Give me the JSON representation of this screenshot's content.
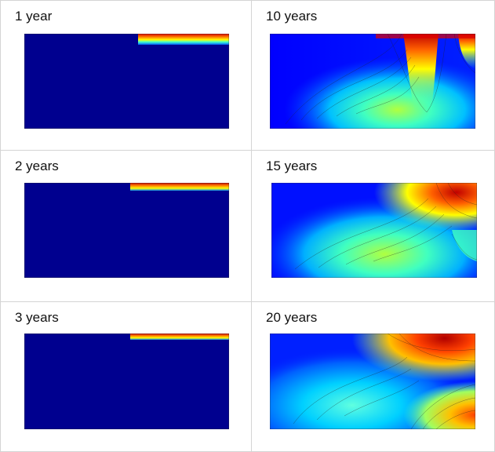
{
  "panels": [
    {
      "label": "1 year",
      "colors": [
        "#000080"
      ]
    },
    {
      "label": "10 years",
      "colors": [
        "#000080"
      ]
    },
    {
      "label": "2 years",
      "colors": [
        "#000080"
      ]
    },
    {
      "label": "15 years",
      "colors": [
        "#000080"
      ]
    },
    {
      "label": "3 years",
      "colors": [
        "#000080"
      ]
    },
    {
      "label": "20 years",
      "colors": [
        "#000080"
      ]
    }
  ],
  "colormap": [
    "#00008f",
    "#0000ff",
    "#0080ff",
    "#00e0ff",
    "#80ff80",
    "#ffff00",
    "#ff8000",
    "#e00000",
    "#800000"
  ]
}
